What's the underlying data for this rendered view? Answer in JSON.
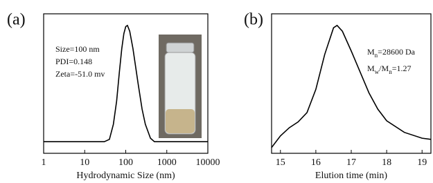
{
  "chart_data": [
    {
      "type": "line",
      "panel_label": "(a)",
      "xlabel": "Hydrodynamic Size (nm)",
      "xscale": "log",
      "xlim": [
        1,
        10000
      ],
      "xticks": [
        1,
        10,
        100,
        1000,
        10000
      ],
      "ylim": [
        -0.1,
        1.1
      ],
      "x": [
        1,
        30,
        40,
        50,
        60,
        70,
        80,
        90,
        100,
        110,
        125,
        150,
        200,
        250,
        300,
        400,
        500,
        10000
      ],
      "series": [
        {
          "color": "#000000",
          "values": [
            0,
            0,
            0.02,
            0.15,
            0.35,
            0.6,
            0.8,
            0.93,
            0.99,
            1.0,
            0.95,
            0.8,
            0.5,
            0.28,
            0.15,
            0.03,
            0,
            0
          ]
        }
      ],
      "annotations": [
        {
          "parts": [
            {
              "text": "Size=100 nm"
            }
          ]
        },
        {
          "parts": [
            {
              "text": "PDI=0.148"
            }
          ]
        },
        {
          "parts": [
            {
              "text": "Zeta=-51.0 mv"
            }
          ]
        }
      ]
    },
    {
      "type": "line",
      "panel_label": "(b)",
      "xlabel": "Elution time (min)",
      "xscale": "linear",
      "xlim": [
        14.75,
        19.25
      ],
      "xticks": [
        15,
        16,
        17,
        18,
        19
      ],
      "ylim": [
        -0.1,
        1.1
      ],
      "x": [
        14.75,
        15,
        15.25,
        15.5,
        15.75,
        16,
        16.25,
        16.5,
        16.6,
        16.75,
        17,
        17.25,
        17.5,
        17.75,
        18,
        18.5,
        19,
        19.25
      ],
      "series": [
        {
          "color": "#000000",
          "values": [
            -0.05,
            0.05,
            0.12,
            0.17,
            0.25,
            0.45,
            0.75,
            0.98,
            1.0,
            0.95,
            0.78,
            0.6,
            0.42,
            0.28,
            0.18,
            0.08,
            0.03,
            0.02
          ]
        }
      ],
      "annotations": [
        {
          "parts": [
            {
              "text": "M"
            },
            {
              "text": "n",
              "sub": true
            },
            {
              "text": "=28600 Da"
            }
          ]
        },
        {
          "parts": [
            {
              "text": "M"
            },
            {
              "text": "w",
              "sub": true
            },
            {
              "text": "/M"
            },
            {
              "text": "n",
              "sub": true
            },
            {
              "text": "=1.27"
            }
          ]
        }
      ]
    }
  ]
}
